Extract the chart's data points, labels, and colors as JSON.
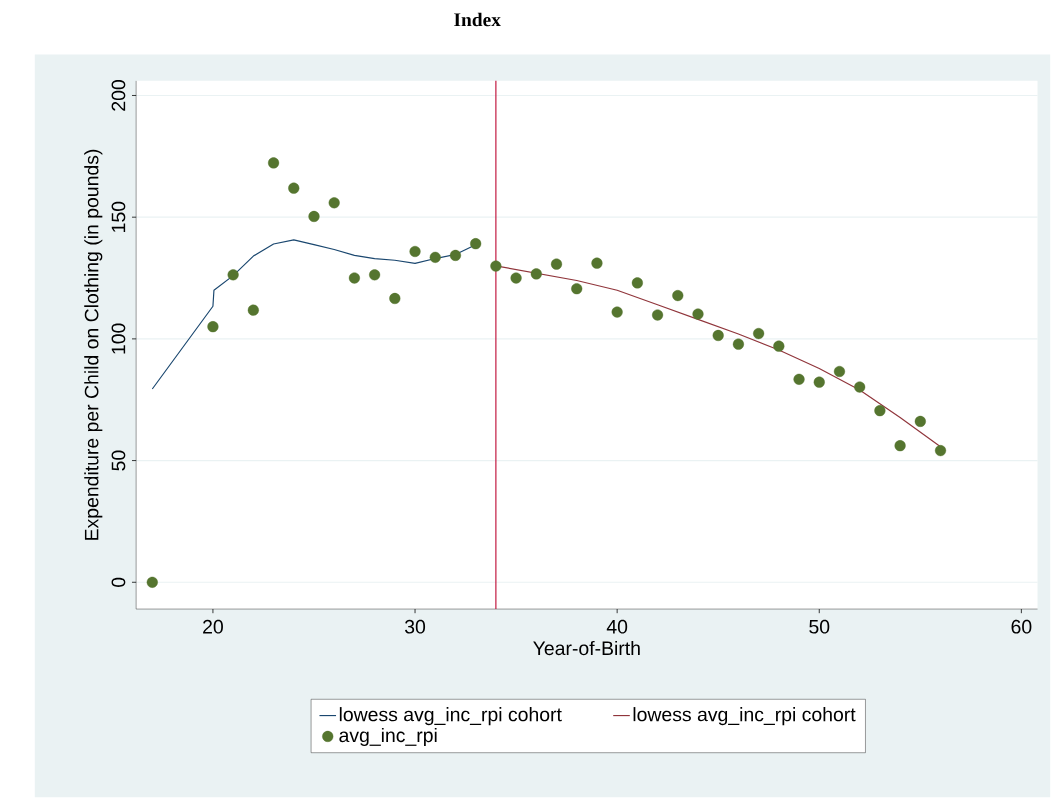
{
  "chart_data": {
    "type": "line",
    "title": "Index",
    "xlabel": "Year-of-Birth",
    "ylabel": "Expenditure per Child on Clothing (in pounds)",
    "xlim": [
      16.2,
      60.8
    ],
    "ylim": [
      -11,
      206
    ],
    "xticks": [
      20,
      30,
      40,
      50,
      60
    ],
    "yticks": [
      0,
      50,
      100,
      150,
      200
    ],
    "grid": "y",
    "legend": "bottom",
    "series": [
      {
        "name": "lowess avg_inc_rpi cohort",
        "type": "line",
        "color": "#1a476f",
        "x": [
          17,
          20,
          20.05,
          21,
          22,
          23,
          24,
          25,
          26,
          27,
          28,
          29,
          30,
          31,
          32,
          33
        ],
        "values": [
          79.4,
          113.4,
          120,
          126,
          134,
          139,
          140.7,
          138.7,
          136.7,
          134.3,
          133,
          132.3,
          131,
          133,
          134.7,
          138.7
        ]
      },
      {
        "name": "lowess avg_inc_rpi cohort",
        "type": "line",
        "color": "#90353b",
        "x": [
          34,
          36,
          38,
          40,
          42,
          44,
          46,
          48,
          50,
          52,
          54,
          56
        ],
        "values": [
          130,
          127,
          124,
          120,
          114,
          108,
          102,
          95.4,
          87.8,
          79,
          67.7,
          55.7
        ]
      },
      {
        "name": "avg_inc_rpi",
        "type": "scatter",
        "marker": "circle",
        "color": "#55752f",
        "x": [
          17,
          20,
          21,
          22,
          23,
          24,
          25,
          26,
          27,
          28,
          29,
          30,
          31,
          32,
          33,
          34,
          35,
          36,
          37,
          38,
          39,
          40,
          41,
          42,
          43,
          44,
          45,
          46,
          47,
          48,
          49,
          50,
          51,
          52,
          53,
          54,
          55,
          56
        ],
        "values": [
          0,
          105,
          126.3,
          111.8,
          172.3,
          161.9,
          150.3,
          155.9,
          125,
          126.3,
          116.6,
          135.9,
          133.5,
          134.3,
          139.1,
          129.9,
          125,
          126.7,
          130.7,
          120.6,
          131.1,
          111,
          123,
          109.8,
          117.8,
          110.2,
          101.4,
          97.8,
          102.2,
          97,
          83.4,
          82.2,
          86.6,
          80.2,
          70.5,
          56.1,
          66.1,
          54.1
        ]
      }
    ],
    "ref_lines": [
      {
        "axis": "x",
        "value": 34,
        "color": "#c0143c"
      }
    ]
  }
}
